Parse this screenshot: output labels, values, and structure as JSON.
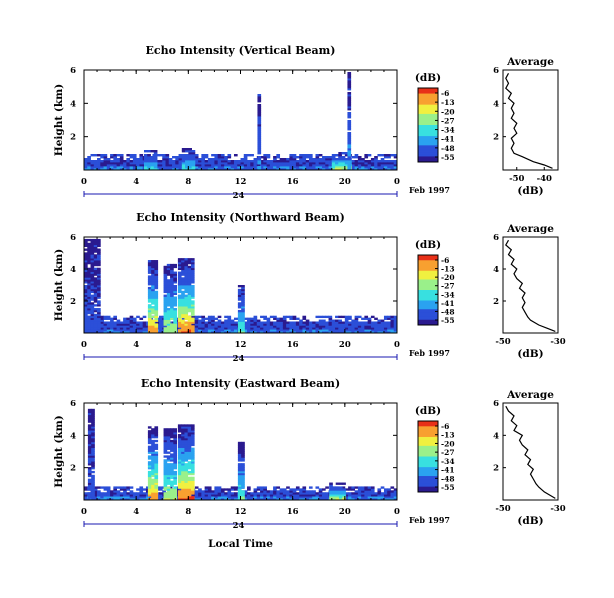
{
  "chart_data": [
    {
      "type": "heatmap",
      "title": "Echo Intensity (Vertical Beam)",
      "ylabel": "Height (km)",
      "xlabel": "",
      "xlim": [
        0,
        24
      ],
      "ylim": [
        0,
        6
      ],
      "xticks": [
        "0",
        "4",
        "8",
        "12",
        "16",
        "20",
        "0"
      ],
      "yticks": [
        "2",
        "4",
        "6"
      ],
      "date_day": "24",
      "date_label": "Feb 1997",
      "colorbar_title": "(dB)",
      "colorbar_ticks": [
        "-6",
        "-13",
        "-20",
        "-27",
        "-34",
        "-41",
        "-48",
        "-55"
      ],
      "clouds": [
        {
          "x0": 0.0,
          "x1": 24.0,
          "top": 0.85,
          "peak": 8
        },
        {
          "x0": 4.6,
          "x1": 5.4,
          "top": 1.2,
          "peak": 18
        },
        {
          "x0": 7.5,
          "x1": 8.3,
          "top": 1.3,
          "peak": 20
        },
        {
          "x0": 19.0,
          "x1": 20.5,
          "top": 1.0,
          "peak": 30
        },
        {
          "x0": 20.2,
          "x1": 20.4,
          "top": 5.8,
          "peak": 12
        },
        {
          "x0": 13.3,
          "x1": 13.5,
          "top": 4.5,
          "peak": 10
        }
      ],
      "profile": {
        "title": "Average",
        "xlabel": "(dB)",
        "xlim": [
          -55,
          -35
        ],
        "xticks": [
          "-50",
          "-40"
        ],
        "yticks": [
          "2",
          "4",
          "6"
        ],
        "height": [
          0.1,
          0.3,
          0.5,
          0.8,
          1.0,
          1.3,
          1.6,
          1.9,
          2.2,
          2.5,
          2.8,
          3.1,
          3.4,
          3.7,
          4.0,
          4.3,
          4.6,
          4.9,
          5.2,
          5.5,
          5.8
        ],
        "value": [
          -37,
          -40,
          -44,
          -48,
          -51,
          -52,
          -51,
          -52,
          -50,
          -51,
          -50,
          -52,
          -51,
          -52,
          -51,
          -53,
          -52,
          -54,
          -53,
          -54,
          -53
        ]
      }
    },
    {
      "type": "heatmap",
      "title": "Echo Intensity (Northward Beam)",
      "ylabel": "Height (km)",
      "xlabel": "",
      "xlim": [
        0,
        24
      ],
      "ylim": [
        0,
        6
      ],
      "xticks": [
        "0",
        "4",
        "8",
        "12",
        "16",
        "20",
        "0"
      ],
      "yticks": [
        "2",
        "4",
        "6"
      ],
      "date_day": "24",
      "date_label": "Feb 1997",
      "colorbar_title": "(dB)",
      "colorbar_ticks": [
        "-6",
        "-13",
        "-20",
        "-27",
        "-34",
        "-41",
        "-48",
        "-55"
      ],
      "clouds": [
        {
          "x0": 0.0,
          "x1": 24.0,
          "top": 1.0,
          "peak": 12
        },
        {
          "x0": 0.0,
          "x1": 1.2,
          "top": 5.8,
          "peak": 4
        },
        {
          "x0": 4.9,
          "x1": 5.6,
          "top": 4.5,
          "peak": 42
        },
        {
          "x0": 6.1,
          "x1": 6.9,
          "top": 4.3,
          "peak": 30
        },
        {
          "x0": 7.2,
          "x1": 8.3,
          "top": 4.6,
          "peak": 46
        },
        {
          "x0": 11.8,
          "x1": 12.2,
          "top": 3.0,
          "peak": 24
        }
      ],
      "profile": {
        "title": "Average",
        "xlabel": "(dB)",
        "xlim": [
          -50,
          -30
        ],
        "xticks": [
          "-50",
          "-30"
        ],
        "yticks": [
          "2",
          "4",
          "6"
        ],
        "height": [
          0.1,
          0.3,
          0.5,
          0.8,
          1.0,
          1.3,
          1.6,
          1.9,
          2.2,
          2.5,
          2.8,
          3.1,
          3.4,
          3.7,
          4.0,
          4.3,
          4.6,
          4.9,
          5.2,
          5.5,
          5.8
        ],
        "value": [
          -31,
          -34,
          -37,
          -40,
          -41,
          -42,
          -43,
          -42,
          -43,
          -42,
          -44,
          -43,
          -45,
          -46,
          -45,
          -47,
          -46,
          -48,
          -47,
          -49,
          -48
        ]
      }
    },
    {
      "type": "heatmap",
      "title": "Echo Intensity (Eastward Beam)",
      "ylabel": "Height (km)",
      "xlabel": "Local Time",
      "xlim": [
        0,
        24
      ],
      "ylim": [
        0,
        6
      ],
      "xticks": [
        "0",
        "4",
        "8",
        "12",
        "16",
        "20",
        "0"
      ],
      "yticks": [
        "2",
        "4",
        "6"
      ],
      "date_day": "24",
      "date_label": "Feb 1997",
      "colorbar_title": "(dB)",
      "colorbar_ticks": [
        "-6",
        "-13",
        "-20",
        "-27",
        "-34",
        "-41",
        "-48",
        "-55"
      ],
      "clouds": [
        {
          "x0": 0.0,
          "x1": 24.0,
          "top": 0.75,
          "peak": 12
        },
        {
          "x0": 0.3,
          "x1": 0.8,
          "top": 5.6,
          "peak": 4
        },
        {
          "x0": 4.9,
          "x1": 5.6,
          "top": 4.5,
          "peak": 42
        },
        {
          "x0": 6.1,
          "x1": 6.9,
          "top": 4.4,
          "peak": 30
        },
        {
          "x0": 7.2,
          "x1": 8.3,
          "top": 4.6,
          "peak": 46
        },
        {
          "x0": 11.8,
          "x1": 12.2,
          "top": 3.5,
          "peak": 24
        },
        {
          "x0": 18.8,
          "x1": 20.0,
          "top": 1.0,
          "peak": 30
        }
      ],
      "profile": {
        "title": "Average",
        "xlabel": "(dB)",
        "xlim": [
          -50,
          -30
        ],
        "xticks": [
          "-50",
          "-30"
        ],
        "yticks": [
          "2",
          "4",
          "6"
        ],
        "height": [
          0.1,
          0.3,
          0.5,
          0.8,
          1.0,
          1.3,
          1.6,
          1.9,
          2.2,
          2.5,
          2.8,
          3.1,
          3.4,
          3.7,
          4.0,
          4.3,
          4.6,
          4.9,
          5.2,
          5.5,
          5.8
        ],
        "value": [
          -31,
          -33,
          -35,
          -37,
          -38,
          -39,
          -40,
          -39,
          -41,
          -40,
          -42,
          -41,
          -43,
          -44,
          -43,
          -46,
          -45,
          -47,
          -46,
          -48,
          -49
        ]
      }
    }
  ],
  "colors": {
    "scale": [
      "#2a1a8f",
      "#2b4fd8",
      "#2aa2f0",
      "#38e0e0",
      "#9af08a",
      "#f0f040",
      "#f8a030",
      "#e83018"
    ]
  }
}
